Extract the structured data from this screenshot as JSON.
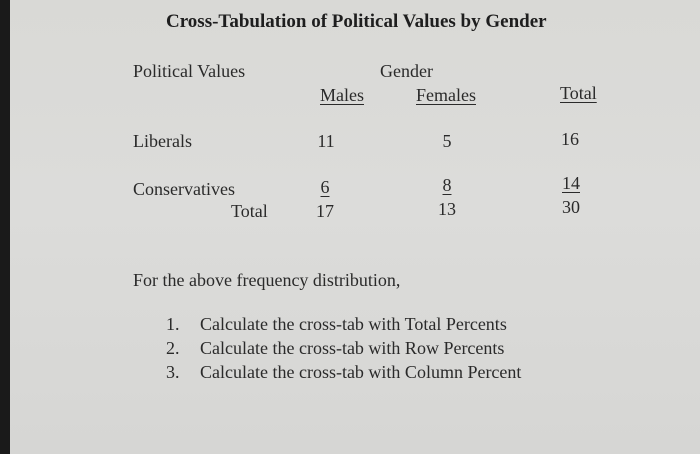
{
  "title": "Cross-Tabulation of Political Values by Gender",
  "table": {
    "row_header": "Political Values",
    "group_header": "Gender",
    "columns": [
      "Males",
      "Females",
      "Total"
    ],
    "rows": [
      {
        "label": "Liberals",
        "values": [
          "11",
          "5",
          "16"
        ]
      },
      {
        "label": "Conservatives",
        "values": [
          "6",
          "8",
          "14"
        ]
      },
      {
        "label": "Total",
        "values": [
          "17",
          "13",
          "30"
        ]
      }
    ]
  },
  "instruction": "For the above frequency distribution,",
  "tasks": [
    {
      "num": "1.",
      "text": "Calculate the cross-tab with Total Percents"
    },
    {
      "num": "2.",
      "text": "Calculate the cross-tab with Row Percents"
    },
    {
      "num": "3.",
      "text": "Calculate the cross-tab with Column Percent"
    }
  ]
}
